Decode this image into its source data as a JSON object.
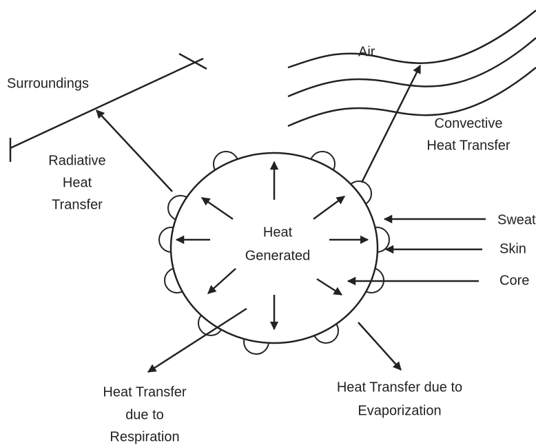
{
  "labels": {
    "surroundings": "Surroundings",
    "air": "Air",
    "convective": [
      "Convective",
      "Heat Transfer"
    ],
    "radiative": [
      "Radiative",
      "Heat",
      "Transfer"
    ],
    "sweat": "Sweat",
    "skin": "Skin",
    "core": "Core",
    "generated": [
      "Heat",
      "Generated"
    ],
    "respiration": [
      "Heat Transfer",
      "due to",
      "Respiration"
    ],
    "evaporization": [
      "Heat Transfer due to",
      "Evaporization"
    ]
  }
}
